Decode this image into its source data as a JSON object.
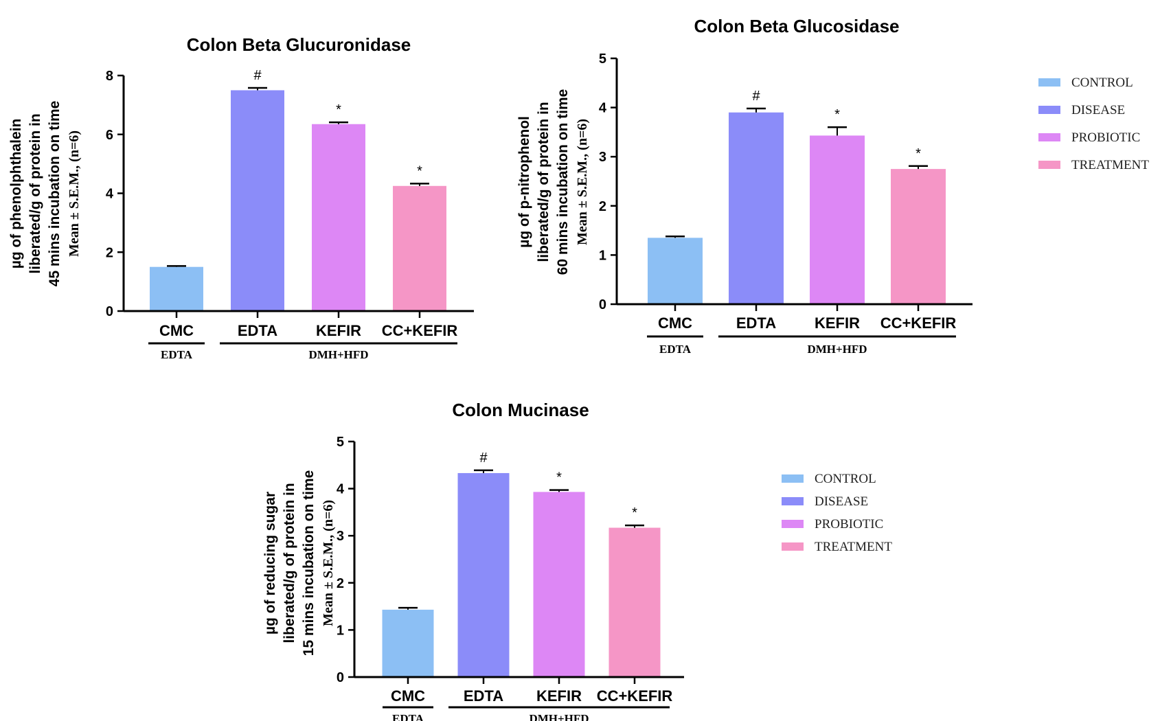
{
  "legend": {
    "items": [
      "CONTROL",
      "DISEASE",
      "PROBIOTIC",
      "TREATMENT"
    ],
    "colors": [
      "#8cbff4",
      "#8b8cf9",
      "#dd87f5",
      "#f596c6"
    ]
  },
  "chart_data": [
    {
      "type": "bar",
      "title": "Colon Beta Glucuronidase",
      "ylabel_lines": [
        "µg of phenolphthalein",
        "liberated/g of protein in",
        "45 mins incubation on time"
      ],
      "ylabel_stat": "Mean ± S.E.M., (n=6)",
      "categories": [
        "CMC",
        "EDTA",
        "KEFIR",
        "CC+KEFIR"
      ],
      "values": [
        1.5,
        7.5,
        6.35,
        4.25
      ],
      "errors": [
        0.03,
        0.08,
        0.06,
        0.08
      ],
      "significance": [
        "",
        "#",
        "*",
        "*"
      ],
      "groups": [
        {
          "label": "EDTA",
          "from": 0,
          "to": 0
        },
        {
          "label": "DMH+HFD",
          "from": 1,
          "to": 3
        }
      ],
      "ylim": [
        0,
        8
      ],
      "yticks": [
        0,
        2,
        4,
        6,
        8
      ]
    },
    {
      "type": "bar",
      "title": "Colon Beta Glucosidase",
      "ylabel_lines": [
        "µg of p-nitrophenol",
        "liberated/g of protein in",
        "60 mins incubation on time"
      ],
      "ylabel_stat": "Mean ± S.E.M., (n=6)",
      "categories": [
        "CMC",
        "EDTA",
        "KEFIR",
        "CC+KEFIR"
      ],
      "values": [
        1.35,
        3.9,
        3.43,
        2.75
      ],
      "errors": [
        0.03,
        0.08,
        0.17,
        0.06
      ],
      "significance": [
        "",
        "#",
        "*",
        "*"
      ],
      "groups": [
        {
          "label": "EDTA",
          "from": 0,
          "to": 0
        },
        {
          "label": "DMH+HFD",
          "from": 1,
          "to": 3
        }
      ],
      "ylim": [
        0,
        5
      ],
      "yticks": [
        0,
        1,
        2,
        3,
        4,
        5
      ]
    },
    {
      "type": "bar",
      "title": "Colon Mucinase",
      "ylabel_lines": [
        "µg of reducing sugar",
        "liberated/g of protein in",
        "15 mins incubation on time"
      ],
      "ylabel_stat": "Mean ± S.E.M., (n=6)",
      "categories": [
        "CMC",
        "EDTA",
        "KEFIR",
        "CC+KEFIR"
      ],
      "values": [
        1.43,
        4.33,
        3.93,
        3.17
      ],
      "errors": [
        0.04,
        0.06,
        0.04,
        0.05
      ],
      "significance": [
        "",
        "#",
        "*",
        "*"
      ],
      "groups": [
        {
          "label": "EDTA",
          "from": 0,
          "to": 0
        },
        {
          "label": "DMH+HFD",
          "from": 1,
          "to": 3
        }
      ],
      "ylim": [
        0,
        5
      ],
      "yticks": [
        0,
        1,
        2,
        3,
        4,
        5
      ]
    }
  ]
}
